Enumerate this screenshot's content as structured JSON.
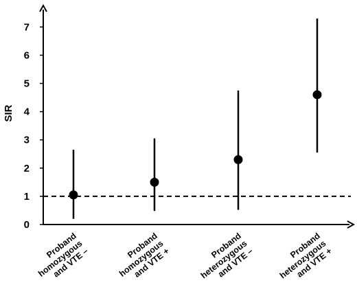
{
  "chart_data": {
    "type": "scatter",
    "title": "",
    "xlabel": "",
    "ylabel": "SIR",
    "ylim": [
      0,
      8
    ],
    "yticks": [
      0,
      1,
      2,
      3,
      4,
      5,
      6,
      7
    ],
    "grid": false,
    "reference_line": {
      "y": 1,
      "style": "dashed"
    },
    "categories": [
      [
        "Proband",
        "homozygous",
        "and VTE –"
      ],
      [
        "Proband",
        "homozygous",
        "and VTE +"
      ],
      [
        "Proband",
        "heterozygous",
        "and VTE –"
      ],
      [
        "Proband",
        "heterozygous",
        "and VTE +"
      ]
    ],
    "points": [
      {
        "value": 1.05,
        "lower": 0.2,
        "upper": 2.65
      },
      {
        "value": 1.5,
        "lower": 0.48,
        "upper": 3.05
      },
      {
        "value": 2.3,
        "lower": 0.52,
        "upper": 4.75
      },
      {
        "value": 4.6,
        "lower": 2.55,
        "upper": 7.3
      }
    ],
    "colors": {
      "marker": "#000000",
      "axis": "#000000"
    }
  }
}
